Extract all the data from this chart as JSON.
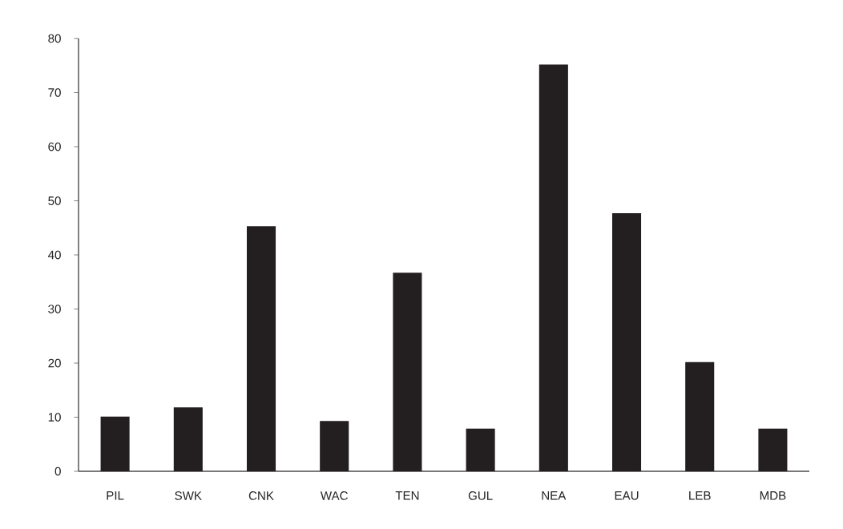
{
  "chart_data": {
    "type": "bar",
    "categories": [
      "PIL",
      "SWK",
      "CNK",
      "WAC",
      "TEN",
      "GUL",
      "NEA",
      "EAU",
      "LEB",
      "MDB"
    ],
    "values": [
      10,
      11.7,
      45.2,
      9.2,
      36.6,
      7.8,
      75.1,
      47.6,
      20.1,
      7.8
    ],
    "color": "#231f20",
    "ylim": [
      0,
      80
    ],
    "yticks": [
      0,
      10,
      20,
      30,
      40,
      50,
      60,
      70,
      80
    ],
    "grid": false
  }
}
